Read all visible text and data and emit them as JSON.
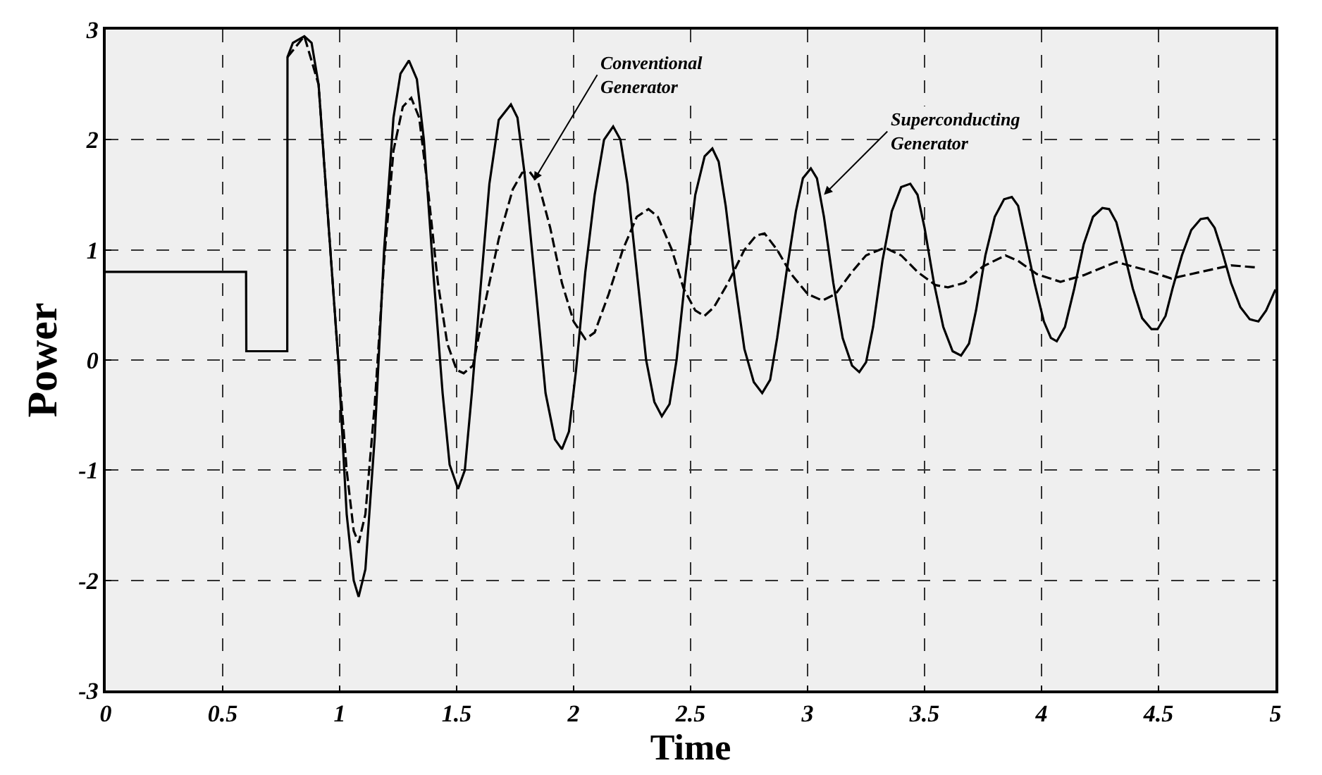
{
  "chart_data": {
    "type": "line",
    "xlabel": "Time",
    "ylabel": "Power",
    "xlim": [
      0,
      5
    ],
    "ylim": [
      -3,
      3
    ],
    "xticks": [
      0,
      0.5,
      1,
      1.5,
      2,
      2.5,
      3,
      3.5,
      4,
      4.5,
      5
    ],
    "yticks": [
      -3,
      -2,
      -1,
      0,
      1,
      2,
      3
    ],
    "grid": true,
    "marker": "none",
    "series": [
      {
        "color": "#000000",
        "line_style": "solid",
        "x": [
          0,
          0.6,
          0.601,
          0.776,
          0.777,
          0.8,
          0.849,
          0.88,
          0.91,
          0.95,
          0.994,
          1.03,
          1.06,
          1.081,
          1.11,
          1.15,
          1.19,
          1.23,
          1.26,
          1.296,
          1.33,
          1.36,
          1.4,
          1.44,
          1.47,
          1.506,
          1.535,
          1.565,
          1.6,
          1.64,
          1.68,
          1.732,
          1.76,
          1.79,
          1.84,
          1.88,
          1.92,
          1.95,
          1.98,
          2.01,
          2.05,
          2.09,
          2.13,
          2.169,
          2.2,
          2.23,
          2.27,
          2.31,
          2.345,
          2.377,
          2.41,
          2.44,
          2.48,
          2.52,
          2.56,
          2.593,
          2.62,
          2.65,
          2.69,
          2.73,
          2.77,
          2.806,
          2.84,
          2.87,
          2.91,
          2.95,
          2.98,
          3.014,
          3.04,
          3.07,
          3.11,
          3.15,
          3.19,
          3.221,
          3.25,
          3.28,
          3.32,
          3.36,
          3.4,
          3.439,
          3.47,
          3.5,
          3.54,
          3.58,
          3.62,
          3.656,
          3.69,
          3.72,
          3.76,
          3.8,
          3.84,
          3.873,
          3.9,
          3.93,
          3.97,
          4.01,
          4.04,
          4.065,
          4.1,
          4.14,
          4.18,
          4.22,
          4.26,
          4.289,
          4.32,
          4.35,
          4.39,
          4.43,
          4.47,
          4.496,
          4.53,
          4.56,
          4.6,
          4.64,
          4.68,
          4.71,
          4.74,
          4.77,
          4.81,
          4.85,
          4.89,
          4.927,
          4.96,
          5.0
        ],
        "values": [
          0.8,
          0.8,
          0.08,
          0.08,
          2.75,
          2.88,
          2.94,
          2.88,
          2.5,
          1.3,
          0,
          -1.4,
          -2.0,
          -2.15,
          -1.9,
          -0.7,
          1.0,
          2.2,
          2.6,
          2.72,
          2.55,
          2.0,
          0.8,
          -0.3,
          -0.95,
          -1.17,
          -1.0,
          -0.3,
          0.6,
          1.6,
          2.18,
          2.32,
          2.2,
          1.7,
          0.6,
          -0.3,
          -0.72,
          -0.81,
          -0.65,
          -0.1,
          0.8,
          1.5,
          2.0,
          2.12,
          2.0,
          1.6,
          0.8,
          0.0,
          -0.38,
          -0.51,
          -0.4,
          0.0,
          0.8,
          1.5,
          1.85,
          1.92,
          1.8,
          1.4,
          0.7,
          0.1,
          -0.2,
          -0.3,
          -0.18,
          0.2,
          0.8,
          1.35,
          1.65,
          1.74,
          1.65,
          1.3,
          0.7,
          0.2,
          -0.05,
          -0.11,
          -0.02,
          0.3,
          0.9,
          1.35,
          1.57,
          1.6,
          1.5,
          1.2,
          0.7,
          0.3,
          0.08,
          0.04,
          0.15,
          0.45,
          0.95,
          1.3,
          1.46,
          1.48,
          1.4,
          1.1,
          0.7,
          0.35,
          0.2,
          0.17,
          0.3,
          0.65,
          1.05,
          1.3,
          1.38,
          1.37,
          1.25,
          1.0,
          0.65,
          0.38,
          0.28,
          0.28,
          0.4,
          0.65,
          0.95,
          1.18,
          1.28,
          1.29,
          1.2,
          1.0,
          0.7,
          0.48,
          0.37,
          0.35,
          0.45,
          0.64
        ]
      },
      {
        "color": "#000000",
        "line_style": "dashed",
        "x": [
          0.777,
          0.849,
          0.91,
          0.95,
          0.994,
          1.03,
          1.06,
          1.081,
          1.11,
          1.15,
          1.19,
          1.23,
          1.27,
          1.306,
          1.34,
          1.38,
          1.42,
          1.46,
          1.5,
          1.53,
          1.57,
          1.62,
          1.68,
          1.74,
          1.78,
          1.812,
          1.85,
          1.9,
          1.95,
          2.0,
          2.05,
          2.09,
          2.15,
          2.21,
          2.27,
          2.32,
          2.36,
          2.42,
          2.47,
          2.52,
          2.559,
          2.6,
          2.66,
          2.73,
          2.78,
          2.816,
          2.87,
          2.93,
          3.0,
          3.063,
          3.12,
          3.19,
          3.25,
          3.33,
          3.4,
          3.47,
          3.547,
          3.6,
          3.67,
          3.75,
          3.846,
          3.9,
          3.98,
          4.081,
          4.18,
          4.32,
          4.44,
          4.555,
          4.68,
          4.81,
          4.92
        ],
        "values": [
          2.75,
          2.94,
          2.5,
          1.3,
          0,
          -1.0,
          -1.55,
          -1.66,
          -1.4,
          -0.4,
          0.9,
          1.9,
          2.3,
          2.38,
          2.2,
          1.5,
          0.7,
          0.15,
          -0.09,
          -0.12,
          -0.05,
          0.5,
          1.1,
          1.55,
          1.7,
          1.71,
          1.6,
          1.2,
          0.7,
          0.35,
          0.19,
          0.25,
          0.6,
          1.0,
          1.3,
          1.37,
          1.3,
          1.0,
          0.65,
          0.45,
          0.4,
          0.48,
          0.7,
          1.0,
          1.13,
          1.15,
          1.0,
          0.78,
          0.6,
          0.54,
          0.6,
          0.8,
          0.95,
          1.02,
          0.95,
          0.8,
          0.68,
          0.66,
          0.7,
          0.85,
          0.95,
          0.9,
          0.78,
          0.71,
          0.77,
          0.89,
          0.82,
          0.74,
          0.8,
          0.86,
          0.84
        ]
      }
    ],
    "annotations": [
      {
        "text": "Conventional\nGenerator",
        "x": 1.83,
        "y": 1.63
      },
      {
        "text": "Superconducting\nGenerator",
        "x": 3.07,
        "y": 1.5
      }
    ]
  }
}
